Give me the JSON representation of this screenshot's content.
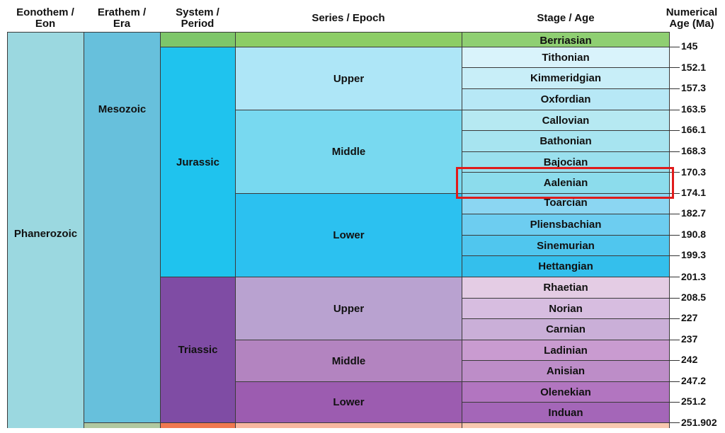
{
  "headers": {
    "eon": "Eonothem /\nEon",
    "era": "Erathem /\nEra",
    "period": "System /\nPeriod",
    "epoch": "Series / Epoch",
    "stage": "Stage / Age",
    "age": "Numerical\nAge (Ma)"
  },
  "eon": {
    "label": "Phanerozoic",
    "color": "#9bd8e0"
  },
  "eras": [
    {
      "label": "Mesozoic",
      "color": "#67c0dc"
    },
    {
      "label": "",
      "color": "#b0c8a0"
    }
  ],
  "periods": [
    {
      "label": "",
      "color": "#7ec66a"
    },
    {
      "label": "Jurassic",
      "color": "#1fc3ee"
    },
    {
      "label": "Triassic",
      "color": "#7f4ca4"
    },
    {
      "label": "",
      "color": "#f07850"
    }
  ],
  "epochs": [
    {
      "label": "",
      "color": "#8ccd66"
    },
    {
      "label": "Upper",
      "color": "#aee6f7"
    },
    {
      "label": "Middle",
      "color": "#78d9f0"
    },
    {
      "label": "Lower",
      "color": "#2cc1f0"
    },
    {
      "label": "Upper",
      "color": "#b9a2d0"
    },
    {
      "label": "Middle",
      "color": "#b384c0"
    },
    {
      "label": "Lower",
      "color": "#9c5cb0"
    },
    {
      "label": "",
      "color": "#f8b7a0"
    }
  ],
  "stages": [
    {
      "label": "Berriasian",
      "color": "#8fcf72"
    },
    {
      "label": "Tithonian",
      "color": "#d9f3fb"
    },
    {
      "label": "Kimmeridgian",
      "color": "#c8eef8"
    },
    {
      "label": "Oxfordian",
      "color": "#b7e8f6"
    },
    {
      "label": "Callovian",
      "color": "#b6e9f2"
    },
    {
      "label": "Bathonian",
      "color": "#a7e4f0"
    },
    {
      "label": "Bajocian",
      "color": "#9ae0ee"
    },
    {
      "label": "Aalenian",
      "color": "#8cdcec"
    },
    {
      "label": "Toarcian",
      "color": "#8bd6f2"
    },
    {
      "label": "Pliensbachian",
      "color": "#6dcdf0"
    },
    {
      "label": "Sinemurian",
      "color": "#50c6ee"
    },
    {
      "label": "Hettangian",
      "color": "#34bfec"
    },
    {
      "label": "Rhaetian",
      "color": "#e4cce4"
    },
    {
      "label": "Norian",
      "color": "#d7bde0"
    },
    {
      "label": "Carnian",
      "color": "#caafd8"
    },
    {
      "label": "Ladinian",
      "color": "#c99bd0"
    },
    {
      "label": "Anisian",
      "color": "#bd8dc8"
    },
    {
      "label": "Olenekian",
      "color": "#b275c0"
    },
    {
      "label": "Induan",
      "color": "#a466b8"
    },
    {
      "label": "",
      "color": "#f8c8b0"
    }
  ],
  "ages": [
    "145",
    "152.1",
    "157.3",
    "163.5",
    "166.1",
    "168.3",
    "170.3",
    "174.1",
    "182.7",
    "190.8",
    "199.3",
    "201.3",
    "208.5",
    "227",
    "237",
    "242",
    "247.2",
    "251.2",
    "251.902"
  ],
  "highlight": {
    "stage": "Aalenian",
    "color": "#e01b1b"
  }
}
